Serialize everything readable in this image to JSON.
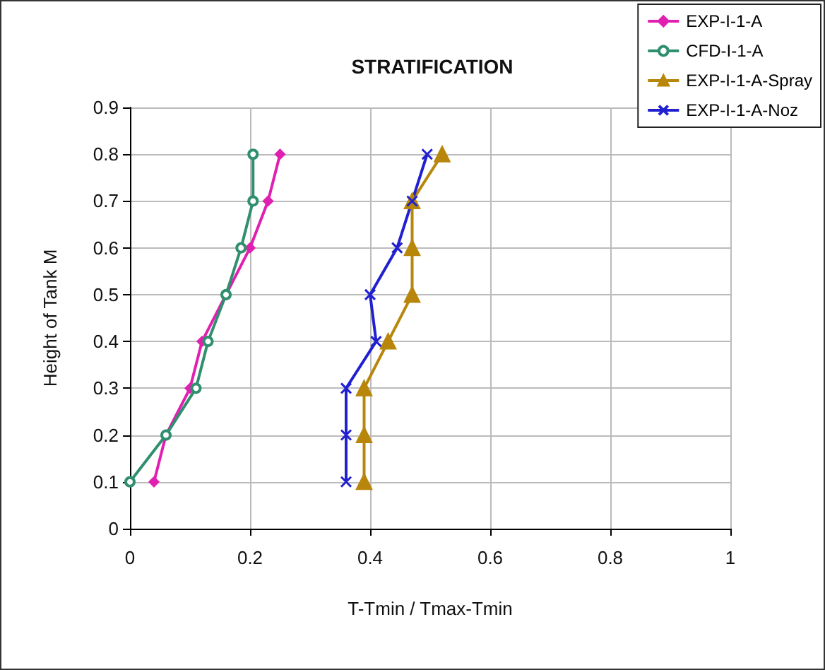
{
  "chart_data": {
    "type": "line",
    "title": "STRATIFICATION",
    "xlabel": "T-Tmin / Tmax-Tmin",
    "ylabel": "Height of Tank M",
    "xlim": [
      0,
      1
    ],
    "xticks": [
      0,
      0.2,
      0.4,
      0.6,
      0.8,
      1
    ],
    "ylim": [
      0,
      0.9
    ],
    "yticks": [
      0,
      0.1,
      0.2,
      0.3,
      0.4,
      0.5,
      0.6,
      0.7,
      0.8,
      0.9
    ],
    "grid": true,
    "legend": "top right",
    "series": [
      {
        "name": "EXP-I-1-A",
        "color": "#e020b0",
        "marker": "diamond",
        "x": [
          0.04,
          0.06,
          0.1,
          0.12,
          0.16,
          0.2,
          0.23,
          0.25
        ],
        "values": [
          0.1,
          0.2,
          0.3,
          0.4,
          0.5,
          0.6,
          0.7,
          0.8
        ]
      },
      {
        "name": "CFD-I-1-A",
        "color": "#2f8f6f",
        "marker": "circle",
        "x": [
          0,
          0.06,
          0.11,
          0.13,
          0.16,
          0.185,
          0.205,
          0.205
        ],
        "values": [
          0.1,
          0.2,
          0.3,
          0.4,
          0.5,
          0.6,
          0.7,
          0.8
        ]
      },
      {
        "name": "EXP-I-1-A-Spray",
        "color": "#b8860b",
        "marker": "triangle",
        "x": [
          0.39,
          0.39,
          0.39,
          0.43,
          0.47,
          0.47,
          0.47,
          0.52
        ],
        "values": [
          0.1,
          0.2,
          0.3,
          0.4,
          0.5,
          0.6,
          0.7,
          0.8
        ]
      },
      {
        "name": "EXP-I-1-A-Noz",
        "color": "#2020d0",
        "marker": "cross",
        "x": [
          0.36,
          0.36,
          0.36,
          0.41,
          0.4,
          0.445,
          0.47,
          0.495
        ],
        "values": [
          0.1,
          0.2,
          0.3,
          0.4,
          0.5,
          0.6,
          0.7,
          0.8
        ]
      }
    ]
  }
}
